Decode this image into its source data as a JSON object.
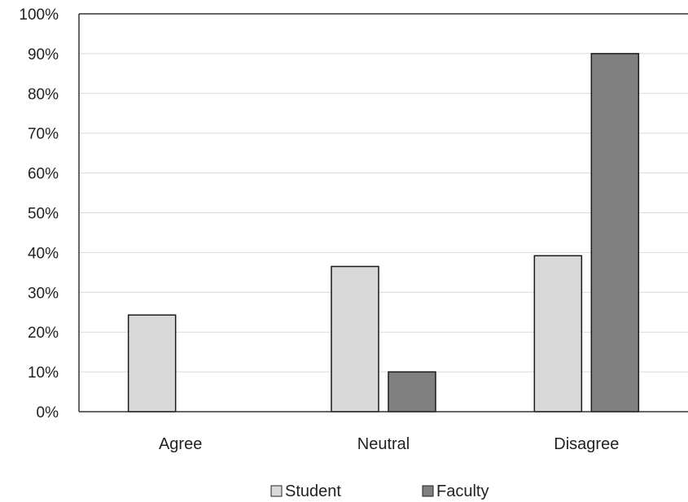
{
  "chart_data": {
    "type": "bar",
    "categories": [
      "Agree",
      "Neutral",
      "Disagree"
    ],
    "series": [
      {
        "name": "Student",
        "values": [
          24.3,
          36.5,
          39.2
        ],
        "color": "#d9d9d9"
      },
      {
        "name": "Faculty",
        "values": [
          0,
          10,
          90
        ],
        "color": "#808080"
      }
    ],
    "y_ticks": [
      "0%",
      "10%",
      "20%",
      "30%",
      "40%",
      "50%",
      "60%",
      "70%",
      "80%",
      "90%",
      "100%"
    ],
    "ylim": [
      0,
      100
    ],
    "grid": true,
    "legend_position": "bottom",
    "title": "",
    "xlabel": "",
    "ylabel": ""
  }
}
